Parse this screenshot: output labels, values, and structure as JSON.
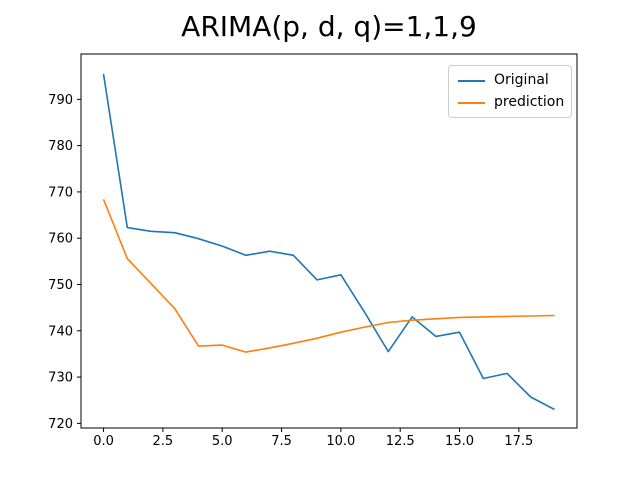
{
  "figure": {
    "background": "#ffffff"
  },
  "chart_data": {
    "type": "line",
    "title": "ARIMA(p, d, q)=1,1,9",
    "xlabel": "",
    "ylabel": "",
    "grid": false,
    "x": [
      0,
      1,
      2,
      3,
      4,
      5,
      6,
      7,
      8,
      9,
      10,
      11,
      12,
      13,
      14,
      15,
      16,
      17,
      18,
      19
    ],
    "series": [
      {
        "name": "Original",
        "color": "#1f77b4",
        "values": [
          795.5,
          762.3,
          761.5,
          761.2,
          759.9,
          758.3,
          756.3,
          757.2,
          756.3,
          751.0,
          752.1,
          744.0,
          735.5,
          743.0,
          738.8,
          739.7,
          729.7,
          730.8,
          725.7,
          723.0
        ]
      },
      {
        "name": "prediction",
        "color": "#ff7f0e",
        "values": [
          768.4,
          755.6,
          750.2,
          744.8,
          736.7,
          736.9,
          735.4,
          736.3,
          737.3,
          738.4,
          739.7,
          740.8,
          741.8,
          742.3,
          742.6,
          742.9,
          743.0,
          743.1,
          743.2,
          743.3
        ]
      }
    ],
    "xlim": [
      -0.95,
      19.95
    ],
    "ylim": [
      719.0,
      799.8
    ],
    "x_ticks": [
      0.0,
      2.5,
      5.0,
      7.5,
      10.0,
      12.5,
      15.0,
      17.5
    ],
    "x_tick_labels": [
      "0.0",
      "2.5",
      "5.0",
      "7.5",
      "10.0",
      "12.5",
      "15.0",
      "17.5"
    ],
    "y_ticks": [
      720,
      730,
      740,
      750,
      760,
      770,
      780,
      790
    ],
    "y_tick_labels": [
      "720",
      "730",
      "740",
      "750",
      "760",
      "770",
      "780",
      "790"
    ],
    "legend": {
      "position": "upper right",
      "entries": [
        "Original",
        "prediction"
      ]
    },
    "axis_color": "#000000",
    "tick_label_color": "#000000"
  }
}
